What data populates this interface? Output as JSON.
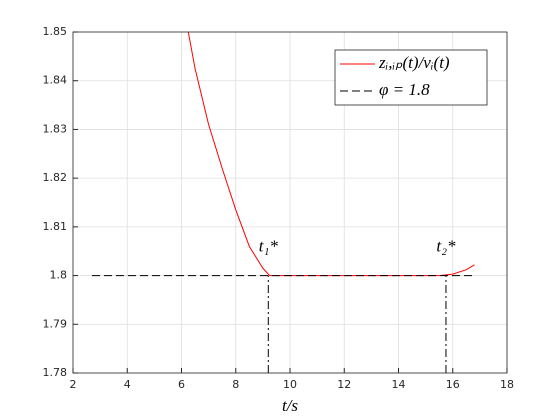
{
  "chart_data": {
    "type": "line",
    "xlabel": "t/s",
    "xlim": [
      2,
      18
    ],
    "xticks": [
      2,
      4,
      6,
      8,
      10,
      12,
      14,
      16,
      18
    ],
    "ylim": [
      1.78,
      1.85
    ],
    "yticks": [
      1.78,
      1.79,
      1.8,
      1.81,
      1.82,
      1.83,
      1.84,
      1.85
    ],
    "grid": true,
    "legend": "top-right",
    "series": [
      {
        "name": "zᵢ,ᵢₚ(t)/vᵢ(t)",
        "color": "#ff0000",
        "style": "solid",
        "x": [
          6.25,
          6.5,
          7,
          7.5,
          8,
          8.5,
          9,
          9.25,
          10,
          12,
          14,
          15.5,
          16,
          16.5,
          16.8
        ],
        "values": [
          1.85,
          1.8425,
          1.831,
          1.822,
          1.8135,
          1.806,
          1.8015,
          1.8,
          1.8,
          1.8,
          1.8,
          1.8,
          1.8003,
          1.8012,
          1.8022
        ]
      },
      {
        "name": "φ = 1.8",
        "color": "#000000",
        "style": "dashed",
        "x": [
          2.7,
          16.8
        ],
        "values": [
          1.8,
          1.8
        ]
      }
    ],
    "markers": [
      {
        "x": 9.2,
        "label": "t₁*"
      },
      {
        "x": 15.75,
        "label": "t₂*"
      }
    ]
  }
}
